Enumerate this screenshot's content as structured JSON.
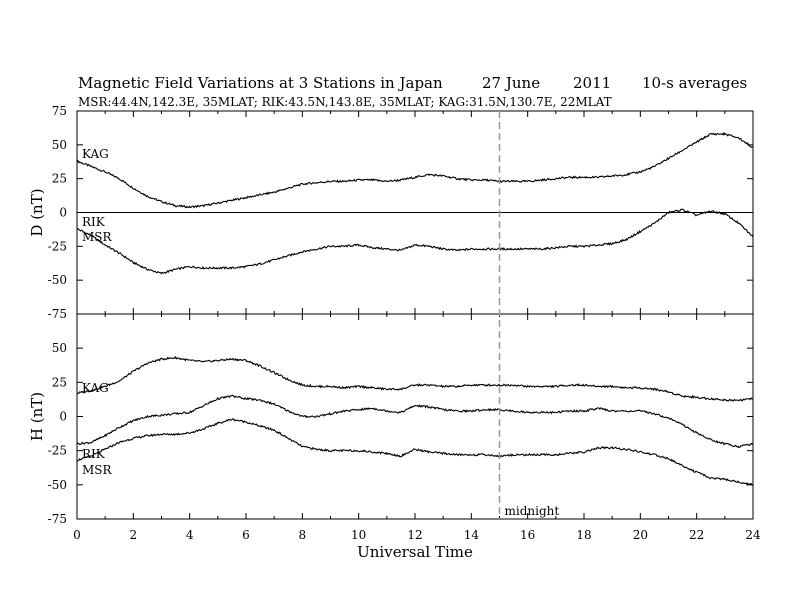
{
  "chart_data": {
    "type": "line",
    "title_parts": [
      "Magnetic Field Variations at 3 Stations in Japan",
      "27 June",
      "2011",
      "10-s averages"
    ],
    "subtitle": "MSR:44.4N,142.3E, 35MLAT;  RIK:43.5N,143.8E, 35MLAT;  KAG:31.5N,130.7E, 22MLAT",
    "xlabel": "Universal Time",
    "xlim": [
      0,
      24
    ],
    "xticks": [
      "0",
      "2",
      "4",
      "6",
      "8",
      "10",
      "12",
      "14",
      "16",
      "18",
      "20",
      "22",
      "24"
    ],
    "annotation": "midnight",
    "midnight_x": 15,
    "panels": [
      {
        "ylabel": "D (nT)",
        "ylim": [
          -75,
          75
        ],
        "yticks": [
          "75",
          "50",
          "25",
          "0",
          "-25",
          "-50",
          "-75"
        ],
        "zero_line": true,
        "series": [
          {
            "name": "KAG",
            "x": [
              0,
              0.5,
              1,
              1.5,
              2,
              2.5,
              3,
              3.5,
              4,
              4.5,
              5,
              5.5,
              6,
              6.5,
              7,
              7.5,
              8,
              8.5,
              9,
              9.5,
              10,
              10.5,
              11,
              11.5,
              12,
              12.5,
              13,
              13.5,
              14,
              14.5,
              15,
              15.5,
              16,
              16.5,
              17,
              17.5,
              18,
              18.5,
              19,
              19.5,
              20,
              20.5,
              21,
              21.5,
              22,
              22.5,
              23,
              23.5,
              24
            ],
            "y": [
              38,
              34,
              30,
              25,
              18,
              12,
              8,
              5,
              4,
              5,
              7,
              9,
              11,
              13,
              15,
              18,
              21,
              22,
              23,
              23,
              24,
              24,
              23,
              24,
              26,
              28,
              27,
              25,
              24,
              24,
              23,
              23,
              23,
              24,
              25,
              26,
              26,
              26,
              27,
              28,
              30,
              34,
              40,
              46,
              52,
              58,
              58,
              55,
              48
            ]
          },
          {
            "name": "RIK",
            "x": [
              0,
              0.5,
              1,
              1.5,
              2,
              2.5,
              3,
              3.5,
              4,
              4.5,
              5,
              5.5,
              6,
              6.5,
              7,
              7.5,
              8,
              8.5,
              9,
              9.5,
              10,
              10.5,
              11,
              11.5,
              12,
              12.5,
              13,
              13.5,
              14,
              14.5,
              15,
              15.5,
              16,
              16.5,
              17,
              17.5,
              18,
              18.5,
              19,
              19.5,
              20,
              20.5,
              21,
              21.5,
              22,
              22.5,
              23,
              23.5,
              24
            ],
            "y": [
              -12,
              -17,
              -24,
              -30,
              -37,
              -42,
              -45,
              -42,
              -40,
              -41,
              -41,
              -41,
              -40,
              -38,
              -35,
              -32,
              -29,
              -27,
              -25,
              -25,
              -24,
              -26,
              -27,
              -28,
              -24,
              -25,
              -27,
              -28,
              -27,
              -27,
              -27,
              -27,
              -27,
              -27,
              -26,
              -25,
              -25,
              -24,
              -23,
              -20,
              -14,
              -8,
              0,
              2,
              -2,
              1,
              -1,
              -8,
              -18
            ]
          },
          {
            "name": "MSR",
            "x": [],
            "y": []
          }
        ]
      },
      {
        "ylabel": "H (nT)",
        "ylim": [
          -75,
          75
        ],
        "yticks": [
          "75",
          "50",
          "25",
          "0",
          "-25",
          "-50",
          "-75"
        ],
        "zero_line": false,
        "series": [
          {
            "name": "KAG",
            "x": [
              0,
              0.5,
              1,
              1.5,
              2,
              2.5,
              3,
              3.5,
              4,
              4.5,
              5,
              5.5,
              6,
              6.5,
              7,
              7.5,
              8,
              8.5,
              9,
              9.5,
              10,
              10.5,
              11,
              11.5,
              12,
              12.5,
              13,
              13.5,
              14,
              14.5,
              15,
              15.5,
              16,
              16.5,
              17,
              17.5,
              18,
              18.5,
              19,
              19.5,
              20,
              20.5,
              21,
              21.5,
              22,
              22.5,
              23,
              23.5,
              24
            ],
            "y": [
              17,
              19,
              22,
              26,
              33,
              39,
              42,
              43,
              41,
              40,
              41,
              42,
              41,
              37,
              32,
              27,
              23,
              22,
              22,
              21,
              22,
              21,
              20,
              20,
              23,
              23,
              22,
              22,
              23,
              23,
              23,
              23,
              22,
              22,
              22,
              23,
              23,
              22,
              22,
              21,
              21,
              20,
              18,
              15,
              14,
              13,
              12,
              12,
              13
            ]
          },
          {
            "name": "RIK",
            "x": [
              0,
              0.5,
              1,
              1.5,
              2,
              2.5,
              3,
              3.5,
              4,
              4.5,
              5,
              5.5,
              6,
              6.5,
              7,
              7.5,
              8,
              8.5,
              9,
              9.5,
              10,
              10.5,
              11,
              11.5,
              12,
              12.5,
              13,
              13.5,
              14,
              14.5,
              15,
              15.5,
              16,
              16.5,
              17,
              17.5,
              18,
              18.5,
              19,
              19.5,
              20,
              20.5,
              21,
              21.5,
              22,
              22.5,
              23,
              23.5,
              24
            ],
            "y": [
              -20,
              -19,
              -14,
              -8,
              -3,
              0,
              1,
              2,
              3,
              8,
              13,
              15,
              13,
              12,
              9,
              4,
              0,
              0,
              2,
              4,
              5,
              6,
              4,
              3,
              8,
              7,
              5,
              4,
              4,
              5,
              5,
              4,
              3,
              3,
              3,
              4,
              4,
              6,
              4,
              4,
              4,
              2,
              -1,
              -6,
              -12,
              -17,
              -20,
              -22,
              -20
            ]
          },
          {
            "name": "MSR",
            "x": [
              0,
              0.5,
              1,
              1.5,
              2,
              2.5,
              3,
              3.5,
              4,
              4.5,
              5,
              5.5,
              6,
              6.5,
              7,
              7.5,
              8,
              8.5,
              9,
              9.5,
              10,
              10.5,
              11,
              11.5,
              12,
              12.5,
              13,
              13.5,
              14,
              14.5,
              15,
              15.5,
              16,
              16.5,
              17,
              17.5,
              18,
              18.5,
              19,
              19.5,
              20,
              20.5,
              21,
              21.5,
              22,
              22.5,
              23,
              23.5,
              24
            ],
            "y": [
              -32,
              -29,
              -24,
              -19,
              -16,
              -14,
              -13,
              -13,
              -12,
              -9,
              -5,
              -2,
              -4,
              -7,
              -10,
              -16,
              -22,
              -24,
              -25,
              -25,
              -25,
              -26,
              -27,
              -29,
              -24,
              -26,
              -27,
              -28,
              -28,
              -28,
              -29,
              -28,
              -28,
              -28,
              -28,
              -27,
              -26,
              -23,
              -23,
              -24,
              -26,
              -28,
              -31,
              -36,
              -41,
              -45,
              -46,
              -48,
              -50
            ]
          }
        ]
      }
    ]
  }
}
